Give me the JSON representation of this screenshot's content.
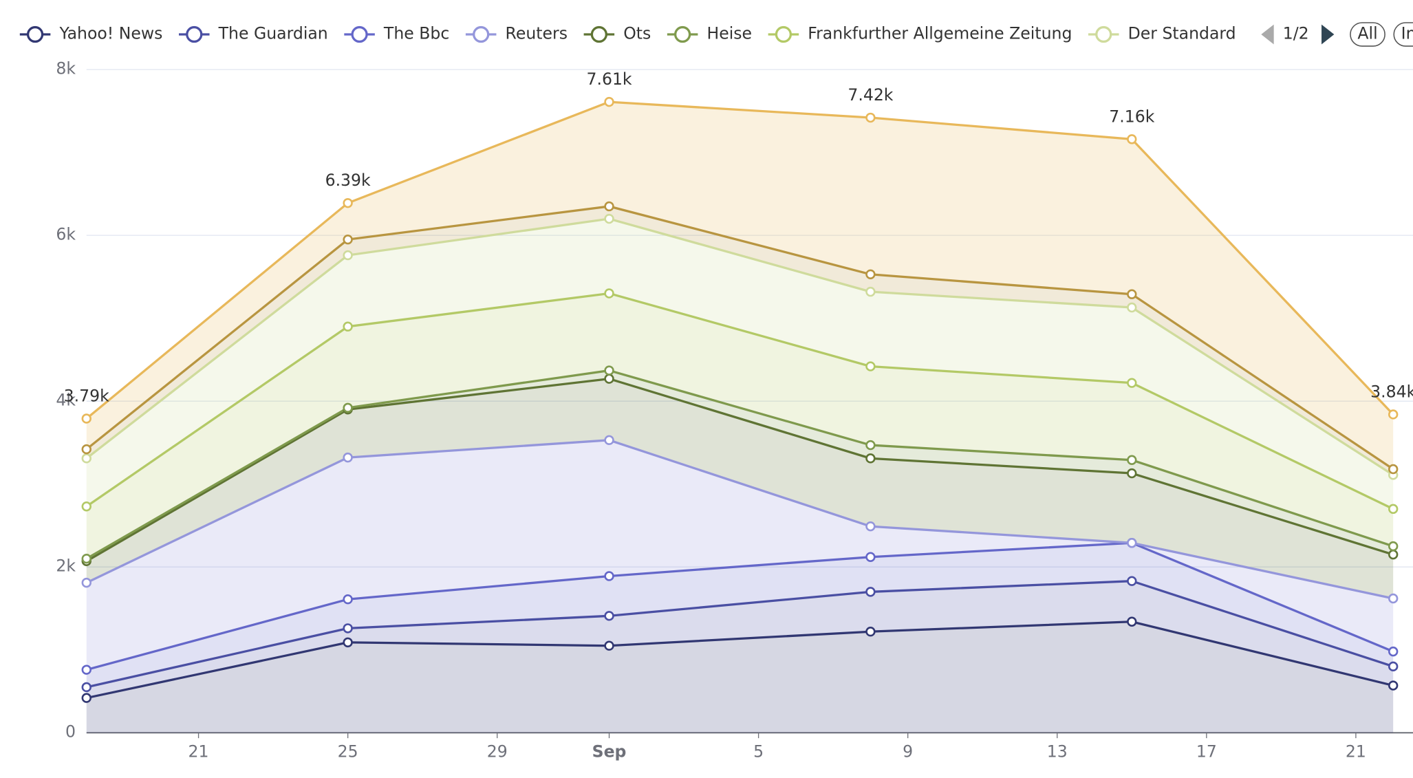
{
  "chart_data": {
    "type": "stacked-area",
    "x": [
      "08-18",
      "08-25",
      "09-01",
      "09-08",
      "09-15",
      "09-22"
    ],
    "xlim": [
      "08-18",
      "09-22"
    ],
    "xticks": [
      {
        "value": "08-21",
        "label": "21"
      },
      {
        "value": "08-25",
        "label": "25"
      },
      {
        "value": "08-29",
        "label": "29"
      },
      {
        "value": "09-01",
        "label": "Sep"
      },
      {
        "value": "09-05",
        "label": "5"
      },
      {
        "value": "09-09",
        "label": "9"
      },
      {
        "value": "09-13",
        "label": "13"
      },
      {
        "value": "09-17",
        "label": "17"
      },
      {
        "value": "09-21",
        "label": "21"
      }
    ],
    "ylim": [
      0,
      8000
    ],
    "yticks": [
      0,
      {
        "value": 2000,
        "label": "2k"
      },
      {
        "value": 4000,
        "label": "4k"
      },
      {
        "value": 6000,
        "label": "6k"
      },
      {
        "value": 8000,
        "label": "8k"
      }
    ],
    "grid": true,
    "series": [
      {
        "name": "Yahoo! News",
        "color": "#313772",
        "values": [
          420,
          1090,
          1050,
          1220,
          1340,
          570
        ]
      },
      {
        "name": "The Guardian",
        "color": "#4a4fa3",
        "values": [
          130,
          170,
          360,
          480,
          490,
          230
        ]
      },
      {
        "name": "The Bbc",
        "color": "#6467c9",
        "values": [
          210,
          350,
          480,
          420,
          460,
          180
        ]
      },
      {
        "name": "Reuters",
        "color": "#9496db",
        "values": [
          1050,
          1710,
          1640,
          370,
          0,
          640
        ]
      },
      {
        "name": "Ots",
        "color": "#5f7434",
        "values": [
          260,
          580,
          740,
          820,
          840,
          530
        ]
      },
      {
        "name": "Heise",
        "color": "#7f9a4d",
        "values": [
          30,
          20,
          100,
          160,
          160,
          100
        ]
      },
      {
        "name": "Frankfurther Allgemeine Zeitung",
        "color": "#b3c966",
        "values": [
          630,
          980,
          930,
          950,
          930,
          450
        ]
      },
      {
        "name": "Der Standard",
        "color": "#cfdb9c",
        "values": [
          580,
          860,
          900,
          900,
          910,
          410
        ]
      },
      {
        "color": "#b89540",
        "values": [
          110,
          190,
          150,
          210,
          160,
          70
        ]
      },
      {
        "color": "#e8b85a",
        "values": [
          370,
          440,
          1260,
          1890,
          1870,
          660
        ]
      }
    ],
    "stack_totals": [
      3790,
      6390,
      7610,
      7420,
      7160,
      3840
    ],
    "stack_total_labels": [
      "3.79k",
      "6.39k",
      "7.61k",
      "7.42k",
      "7.16k",
      "3.84k"
    ],
    "legend_page_label": "1/2",
    "legend_buttons": [
      "All",
      "Inv"
    ]
  }
}
